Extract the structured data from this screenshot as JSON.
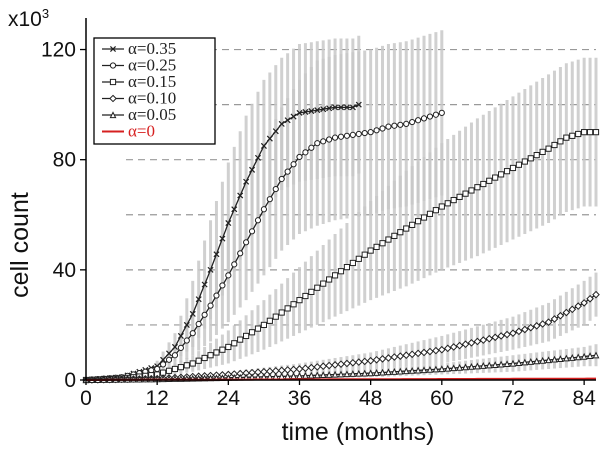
{
  "chart_data": {
    "type": "line",
    "xlabel": "time (months)",
    "ylabel": "cell count",
    "y_multiplier_label": "x10",
    "y_multiplier_exp": "3",
    "xlim": [
      0,
      86
    ],
    "ylim": [
      0,
      130
    ],
    "xticks": [
      0,
      12,
      24,
      36,
      48,
      60,
      72,
      84
    ],
    "yticks": [
      0,
      40,
      80,
      120
    ],
    "dashed_gridlines_y": [
      20,
      40,
      60,
      80,
      100,
      120
    ],
    "legend_position": "top-left",
    "series": [
      {
        "name": "α=0.35",
        "marker": "x",
        "color": "#222222",
        "x": [
          0,
          6,
          12,
          15,
          18,
          21,
          24,
          27,
          30,
          33,
          36,
          39,
          42,
          45,
          46
        ],
        "y": [
          0,
          1,
          5,
          12,
          24,
          40,
          57,
          72,
          85,
          93,
          97,
          98,
          99,
          99,
          100
        ],
        "err": [
          0,
          0.5,
          2,
          5,
          12,
          18,
          22,
          24,
          24,
          24,
          25,
          25,
          25,
          25,
          25
        ]
      },
      {
        "name": "α=0.25",
        "marker": "circle",
        "color": "#222222",
        "x": [
          0,
          6,
          12,
          15,
          18,
          21,
          24,
          27,
          30,
          33,
          36,
          39,
          42,
          45,
          48,
          51,
          54,
          57,
          60
        ],
        "y": [
          0,
          1,
          4,
          9,
          17,
          27,
          38,
          50,
          62,
          73,
          81,
          86,
          88,
          89,
          90,
          92,
          93,
          95,
          97
        ],
        "err": [
          0,
          0.5,
          2,
          4,
          8,
          13,
          17,
          21,
          24,
          26,
          28,
          30,
          30,
          30,
          30,
          30,
          30,
          30,
          30
        ]
      },
      {
        "name": "α=0.15",
        "marker": "square",
        "color": "#222222",
        "x": [
          0,
          6,
          12,
          18,
          24,
          30,
          36,
          42,
          48,
          54,
          60,
          66,
          72,
          78,
          81,
          84,
          86
        ],
        "y": [
          0,
          0.5,
          2,
          6,
          12,
          20,
          29,
          38,
          47,
          55,
          63,
          70,
          77,
          84,
          88,
          90,
          90
        ],
        "err": [
          0,
          0.3,
          1,
          3,
          6,
          9,
          12,
          15,
          18,
          21,
          23,
          25,
          26,
          27,
          27,
          27,
          27
        ]
      },
      {
        "name": "α=0.10",
        "marker": "diamond",
        "color": "#222222",
        "x": [
          0,
          12,
          24,
          36,
          48,
          60,
          72,
          78,
          84,
          86
        ],
        "y": [
          0,
          0.5,
          2,
          4,
          7,
          11,
          17,
          21,
          28,
          31
        ],
        "err": [
          0,
          0.3,
          1,
          2,
          3,
          5,
          6,
          7,
          8,
          8
        ]
      },
      {
        "name": "α=0.05",
        "marker": "triangle",
        "color": "#222222",
        "x": [
          0,
          12,
          24,
          36,
          48,
          60,
          72,
          84,
          86
        ],
        "y": [
          0,
          0.3,
          0.8,
          1.5,
          2.5,
          4,
          6,
          8.5,
          9
        ],
        "err": [
          0,
          0.2,
          0.5,
          1,
          1.5,
          2,
          3,
          3.5,
          4
        ]
      },
      {
        "name": "α=0",
        "marker": "none",
        "color": "#d62020",
        "x": [
          0,
          86
        ],
        "y": [
          0,
          0.5
        ],
        "err": [
          0,
          0
        ]
      }
    ]
  }
}
